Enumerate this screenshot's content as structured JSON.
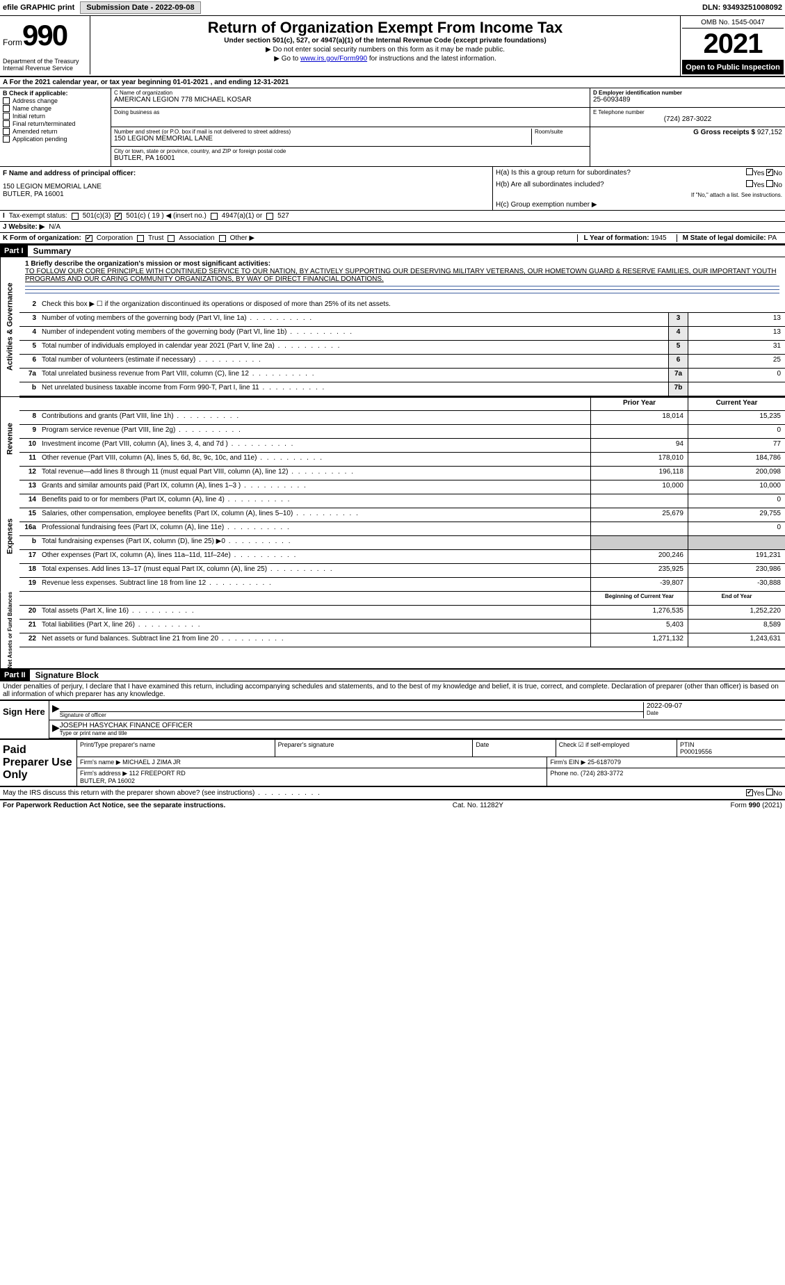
{
  "top_bar": {
    "efile": "efile GRAPHIC print",
    "submission": "Submission Date - 2022-09-08",
    "dln": "DLN: 93493251008092"
  },
  "header": {
    "form_word": "Form",
    "form_num": "990",
    "title": "Return of Organization Exempt From Income Tax",
    "subtitle": "Under section 501(c), 527, or 4947(a)(1) of the Internal Revenue Code (except private foundations)",
    "note1": "▶ Do not enter social security numbers on this form as it may be made public.",
    "note2_pre": "▶ Go to ",
    "note2_link": "www.irs.gov/Form990",
    "note2_post": " for instructions and the latest information.",
    "dept": "Department of the Treasury\nInternal Revenue Service",
    "omb": "OMB No. 1545-0047",
    "year": "2021",
    "inspect": "Open to Public Inspection"
  },
  "period": "For the 2021 calendar year, or tax year beginning 01-01-2021    , and ending 12-31-2021",
  "section_b": {
    "label": "B Check if applicable:",
    "options": [
      "Address change",
      "Name change",
      "Initial return",
      "Final return/terminated",
      "Amended return",
      "Application pending"
    ]
  },
  "section_c": {
    "name_lbl": "C Name of organization",
    "name": "AMERICAN LEGION 778 MICHAEL KOSAR",
    "dba_lbl": "Doing business as",
    "dba": "",
    "addr_lbl": "Number and street (or P.O. box if mail is not delivered to street address)",
    "room_lbl": "Room/suite",
    "addr": "150 LEGION MEMORIAL LANE",
    "city_lbl": "City or town, state or province, country, and ZIP or foreign postal code",
    "city": "BUTLER, PA  16001"
  },
  "section_d": {
    "ein_lbl": "D Employer identification number",
    "ein": "25-6093489",
    "tel_lbl": "E Telephone number",
    "tel": "(724) 287-3022",
    "gross_lbl": "G Gross receipts $",
    "gross": "927,152"
  },
  "section_f": {
    "lbl": "F  Name and address of principal officer:",
    "addr1": "150 LEGION MEMORIAL LANE",
    "addr2": "BUTLER, PA  16001"
  },
  "section_h": {
    "ha": "H(a)  Is this a group return for subordinates?",
    "hb": "H(b)  Are all subordinates included?",
    "hb_note": "If \"No,\" attach a list. See instructions.",
    "hc": "H(c)  Group exemption number ▶",
    "yes": "Yes",
    "no": "No"
  },
  "section_i": {
    "lbl": "Tax-exempt status:",
    "opts": [
      "501(c)(3)",
      "501(c) ( 19 ) ◀ (insert no.)",
      "4947(a)(1) or",
      "527"
    ]
  },
  "section_j": {
    "lbl": "J   Website: ▶",
    "val": "N/A"
  },
  "section_k": {
    "lbl": "K Form of organization:",
    "opts": [
      "Corporation",
      "Trust",
      "Association",
      "Other ▶"
    ]
  },
  "section_l": {
    "lbl": "L Year of formation:",
    "val": "1945"
  },
  "section_m": {
    "lbl": "M State of legal domicile:",
    "val": "PA"
  },
  "part1": {
    "hdr": "Part I",
    "title": "Summary",
    "line1_lbl": "1  Briefly describe the organization's mission or most significant activities:",
    "mission": "TO FOLLOW OUR CORE PRINCIPLE WITH CONTINUED SERVICE TO OUR NATION, BY ACTIVELY SUPPORTING OUR DESERVING MILITARY VETERANS, OUR HOMETOWN GUARD & RESERVE FAMILIES, OUR IMPORTANT YOUTH PROGRAMS AND OUR CARING COMMUNITY ORGANIZATIONS, BY WAY OF DIRECT FINANCIAL DONATIONS.",
    "line2": "Check this box ▶ ☐  if the organization discontinued its operations or disposed of more than 25% of its net assets."
  },
  "tabs": {
    "gov": "Activities & Governance",
    "rev": "Revenue",
    "exp": "Expenses",
    "net": "Net Assets or Fund Balances"
  },
  "gov_lines": [
    {
      "n": "3",
      "d": "Number of voting members of the governing body (Part VI, line 1a)",
      "box": "3",
      "v": "13"
    },
    {
      "n": "4",
      "d": "Number of independent voting members of the governing body (Part VI, line 1b)",
      "box": "4",
      "v": "13"
    },
    {
      "n": "5",
      "d": "Total number of individuals employed in calendar year 2021 (Part V, line 2a)",
      "box": "5",
      "v": "31"
    },
    {
      "n": "6",
      "d": "Total number of volunteers (estimate if necessary)",
      "box": "6",
      "v": "25"
    },
    {
      "n": "7a",
      "d": "Total unrelated business revenue from Part VIII, column (C), line 12",
      "box": "7a",
      "v": "0"
    },
    {
      "n": "b",
      "d": "Net unrelated business taxable income from Form 990-T, Part I, line 11",
      "box": "7b",
      "v": ""
    }
  ],
  "year_hdr": {
    "prior": "Prior Year",
    "current": "Current Year"
  },
  "rev_lines": [
    {
      "n": "8",
      "d": "Contributions and grants (Part VIII, line 1h)",
      "p": "18,014",
      "c": "15,235"
    },
    {
      "n": "9",
      "d": "Program service revenue (Part VIII, line 2g)",
      "p": "",
      "c": "0"
    },
    {
      "n": "10",
      "d": "Investment income (Part VIII, column (A), lines 3, 4, and 7d )",
      "p": "94",
      "c": "77"
    },
    {
      "n": "11",
      "d": "Other revenue (Part VIII, column (A), lines 5, 6d, 8c, 9c, 10c, and 11e)",
      "p": "178,010",
      "c": "184,786"
    },
    {
      "n": "12",
      "d": "Total revenue—add lines 8 through 11 (must equal Part VIII, column (A), line 12)",
      "p": "196,118",
      "c": "200,098"
    }
  ],
  "exp_lines": [
    {
      "n": "13",
      "d": "Grants and similar amounts paid (Part IX, column (A), lines 1–3 )",
      "p": "10,000",
      "c": "10,000"
    },
    {
      "n": "14",
      "d": "Benefits paid to or for members (Part IX, column (A), line 4)",
      "p": "",
      "c": "0"
    },
    {
      "n": "15",
      "d": "Salaries, other compensation, employee benefits (Part IX, column (A), lines 5–10)",
      "p": "25,679",
      "c": "29,755"
    },
    {
      "n": "16a",
      "d": "Professional fundraising fees (Part IX, column (A), line 11e)",
      "p": "",
      "c": "0"
    },
    {
      "n": "b",
      "d": "Total fundraising expenses (Part IX, column (D), line 25) ▶0",
      "p": "",
      "c": "",
      "grey": true
    },
    {
      "n": "17",
      "d": "Other expenses (Part IX, column (A), lines 11a–11d, 11f–24e)",
      "p": "200,246",
      "c": "191,231"
    },
    {
      "n": "18",
      "d": "Total expenses. Add lines 13–17 (must equal Part IX, column (A), line 25)",
      "p": "235,925",
      "c": "230,986"
    },
    {
      "n": "19",
      "d": "Revenue less expenses. Subtract line 18 from line 12",
      "p": "-39,807",
      "c": "-30,888"
    }
  ],
  "net_hdr": {
    "prior": "Beginning of Current Year",
    "current": "End of Year"
  },
  "net_lines": [
    {
      "n": "20",
      "d": "Total assets (Part X, line 16)",
      "p": "1,276,535",
      "c": "1,252,220"
    },
    {
      "n": "21",
      "d": "Total liabilities (Part X, line 26)",
      "p": "5,403",
      "c": "8,589"
    },
    {
      "n": "22",
      "d": "Net assets or fund balances. Subtract line 21 from line 20",
      "p": "1,271,132",
      "c": "1,243,631"
    }
  ],
  "part2": {
    "hdr": "Part II",
    "title": "Signature Block",
    "decl": "Under penalties of perjury, I declare that I have examined this return, including accompanying schedules and statements, and to the best of my knowledge and belief, it is true, correct, and complete. Declaration of preparer (other than officer) is based on all information of which preparer has any knowledge."
  },
  "sign": {
    "here": "Sign Here",
    "sig_lbl": "Signature of officer",
    "date_lbl": "Date",
    "date": "2022-09-07",
    "name": "JOSEPH HASYCHAK FINANCE OFFICER",
    "name_lbl": "Type or print name and title"
  },
  "prep": {
    "title": "Paid Preparer Use Only",
    "name_lbl": "Print/Type preparer's name",
    "sig_lbl": "Preparer's signature",
    "date_lbl": "Date",
    "check_lbl": "Check ☑ if self-employed",
    "ptin_lbl": "PTIN",
    "ptin": "P00019556",
    "firm_name_lbl": "Firm's name    ▶",
    "firm_name": "MICHAEL J ZIMA JR",
    "firm_ein_lbl": "Firm's EIN ▶",
    "firm_ein": "25-6187079",
    "firm_addr_lbl": "Firm's address ▶",
    "firm_addr": "112 FREEPORT RD\nBUTLER, PA  16002",
    "firm_tel_lbl": "Phone no.",
    "firm_tel": "(724) 283-3772"
  },
  "discuss": {
    "q": "May the IRS discuss this return with the preparer shown above? (see instructions)",
    "yes": "Yes",
    "no": "No"
  },
  "footer": {
    "left": "For Paperwork Reduction Act Notice, see the separate instructions.",
    "mid": "Cat. No. 11282Y",
    "right": "Form 990 (2021)"
  }
}
